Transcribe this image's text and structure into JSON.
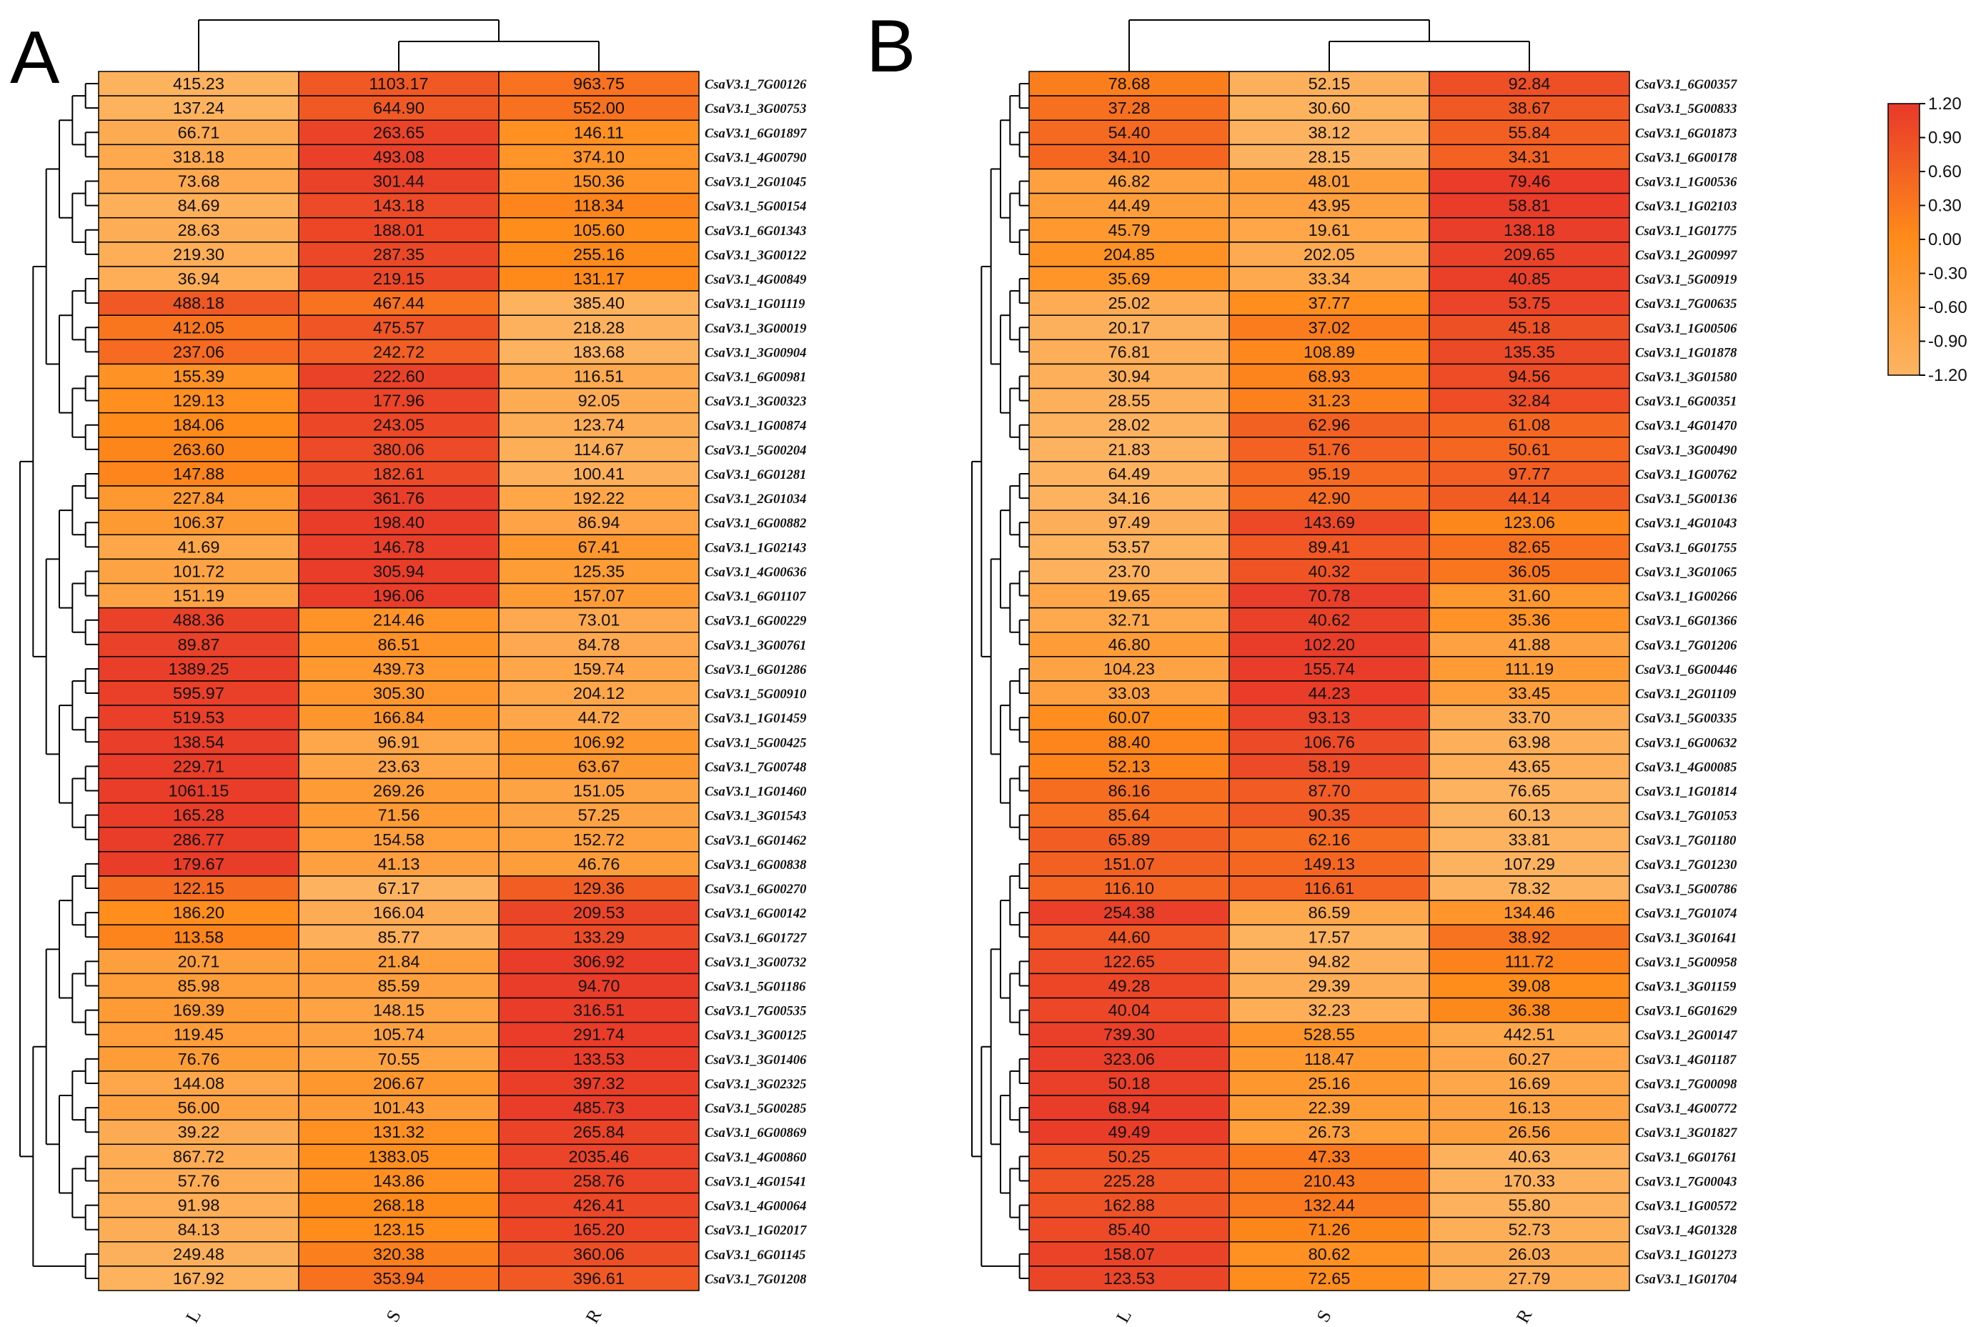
{
  "chart_data": [
    {
      "type": "heatmap",
      "panel_label": "A",
      "columns": [
        "L",
        "S",
        "R"
      ],
      "rows": [
        {
          "gene": "CsaV3.1_7G00126",
          "values": [
            415.23,
            1103.17,
            963.75
          ]
        },
        {
          "gene": "CsaV3.1_3G00753",
          "values": [
            137.24,
            644.9,
            552.0
          ]
        },
        {
          "gene": "CsaV3.1_6G01897",
          "values": [
            66.71,
            263.65,
            146.11
          ]
        },
        {
          "gene": "CsaV3.1_4G00790",
          "values": [
            318.18,
            493.08,
            374.1
          ]
        },
        {
          "gene": "CsaV3.1_2G01045",
          "values": [
            73.68,
            301.44,
            150.36
          ]
        },
        {
          "gene": "CsaV3.1_5G00154",
          "values": [
            84.69,
            143.18,
            118.34
          ]
        },
        {
          "gene": "CsaV3.1_6G01343",
          "values": [
            28.63,
            188.01,
            105.6
          ]
        },
        {
          "gene": "CsaV3.1_3G00122",
          "values": [
            219.3,
            287.35,
            255.16
          ]
        },
        {
          "gene": "CsaV3.1_4G00849",
          "values": [
            36.94,
            219.15,
            131.17
          ]
        },
        {
          "gene": "CsaV3.1_1G01119",
          "values": [
            488.18,
            467.44,
            385.4
          ]
        },
        {
          "gene": "CsaV3.1_3G00019",
          "values": [
            412.05,
            475.57,
            218.28
          ]
        },
        {
          "gene": "CsaV3.1_3G00904",
          "values": [
            237.06,
            242.72,
            183.68
          ]
        },
        {
          "gene": "CsaV3.1_6G00981",
          "values": [
            155.39,
            222.6,
            116.51
          ]
        },
        {
          "gene": "CsaV3.1_3G00323",
          "values": [
            129.13,
            177.96,
            92.05
          ]
        },
        {
          "gene": "CsaV3.1_1G00874",
          "values": [
            184.06,
            243.05,
            123.74
          ]
        },
        {
          "gene": "CsaV3.1_5G00204",
          "values": [
            263.6,
            380.06,
            114.67
          ]
        },
        {
          "gene": "CsaV3.1_6G01281",
          "values": [
            147.88,
            182.61,
            100.41
          ]
        },
        {
          "gene": "CsaV3.1_2G01034",
          "values": [
            227.84,
            361.76,
            192.22
          ]
        },
        {
          "gene": "CsaV3.1_6G00882",
          "values": [
            106.37,
            198.4,
            86.94
          ]
        },
        {
          "gene": "CsaV3.1_1G02143",
          "values": [
            41.69,
            146.78,
            67.41
          ]
        },
        {
          "gene": "CsaV3.1_4G00636",
          "values": [
            101.72,
            305.94,
            125.35
          ]
        },
        {
          "gene": "CsaV3.1_6G01107",
          "values": [
            151.19,
            196.06,
            157.07
          ]
        },
        {
          "gene": "CsaV3.1_6G00229",
          "values": [
            488.36,
            214.46,
            73.01
          ]
        },
        {
          "gene": "CsaV3.1_3G00761",
          "values": [
            89.87,
            86.51,
            84.78
          ]
        },
        {
          "gene": "CsaV3.1_6G01286",
          "values": [
            1389.25,
            439.73,
            159.74
          ]
        },
        {
          "gene": "CsaV3.1_5G00910",
          "values": [
            595.97,
            305.3,
            204.12
          ]
        },
        {
          "gene": "CsaV3.1_1G01459",
          "values": [
            519.53,
            166.84,
            44.72
          ]
        },
        {
          "gene": "CsaV3.1_5G00425",
          "values": [
            138.54,
            96.91,
            106.92
          ]
        },
        {
          "gene": "CsaV3.1_7G00748",
          "values": [
            229.71,
            23.63,
            63.67
          ]
        },
        {
          "gene": "CsaV3.1_1G01460",
          "values": [
            1061.15,
            269.26,
            151.05
          ]
        },
        {
          "gene": "CsaV3.1_3G01543",
          "values": [
            165.28,
            71.56,
            57.25
          ]
        },
        {
          "gene": "CsaV3.1_6G01462",
          "values": [
            286.77,
            154.58,
            152.72
          ]
        },
        {
          "gene": "CsaV3.1_6G00838",
          "values": [
            179.67,
            41.13,
            46.76
          ]
        },
        {
          "gene": "CsaV3.1_6G00270",
          "values": [
            122.15,
            67.17,
            129.36
          ]
        },
        {
          "gene": "CsaV3.1_6G00142",
          "values": [
            186.2,
            166.04,
            209.53
          ]
        },
        {
          "gene": "CsaV3.1_6G01727",
          "values": [
            113.58,
            85.77,
            133.29
          ]
        },
        {
          "gene": "CsaV3.1_3G00732",
          "values": [
            20.71,
            21.84,
            306.92
          ]
        },
        {
          "gene": "CsaV3.1_5G01186",
          "values": [
            85.98,
            85.59,
            94.7
          ]
        },
        {
          "gene": "CsaV3.1_7G00535",
          "values": [
            169.39,
            148.15,
            316.51
          ]
        },
        {
          "gene": "CsaV3.1_3G00125",
          "values": [
            119.45,
            105.74,
            291.74
          ]
        },
        {
          "gene": "CsaV3.1_3G01406",
          "values": [
            76.76,
            70.55,
            133.53
          ]
        },
        {
          "gene": "CsaV3.1_3G02325",
          "values": [
            144.08,
            206.67,
            397.32
          ]
        },
        {
          "gene": "CsaV3.1_5G00285",
          "values": [
            56.0,
            101.43,
            485.73
          ]
        },
        {
          "gene": "CsaV3.1_6G00869",
          "values": [
            39.22,
            131.32,
            265.84
          ]
        },
        {
          "gene": "CsaV3.1_4G00860",
          "values": [
            867.72,
            1383.05,
            2035.46
          ]
        },
        {
          "gene": "CsaV3.1_4G01541",
          "values": [
            57.76,
            143.86,
            258.76
          ]
        },
        {
          "gene": "CsaV3.1_4G00064",
          "values": [
            91.98,
            268.18,
            426.41
          ]
        },
        {
          "gene": "CsaV3.1_1G02017",
          "values": [
            84.13,
            123.15,
            165.2
          ]
        },
        {
          "gene": "CsaV3.1_6G01145",
          "values": [
            249.48,
            320.38,
            360.06
          ]
        },
        {
          "gene": "CsaV3.1_7G01208",
          "values": [
            167.92,
            353.94,
            396.61
          ]
        }
      ]
    },
    {
      "type": "heatmap",
      "panel_label": "B",
      "columns": [
        "L",
        "S",
        "R"
      ],
      "rows": [
        {
          "gene": "CsaV3.1_6G00357",
          "values": [
            78.68,
            52.15,
            92.84
          ]
        },
        {
          "gene": "CsaV3.1_5G00833",
          "values": [
            37.28,
            30.6,
            38.67
          ]
        },
        {
          "gene": "CsaV3.1_6G01873",
          "values": [
            54.4,
            38.12,
            55.84
          ]
        },
        {
          "gene": "CsaV3.1_6G00178",
          "values": [
            34.1,
            28.15,
            34.31
          ]
        },
        {
          "gene": "CsaV3.1_1G00536",
          "values": [
            46.82,
            48.01,
            79.46
          ]
        },
        {
          "gene": "CsaV3.1_1G02103",
          "values": [
            44.49,
            43.95,
            58.81
          ]
        },
        {
          "gene": "CsaV3.1_1G01775",
          "values": [
            45.79,
            19.61,
            138.18
          ]
        },
        {
          "gene": "CsaV3.1_2G00997",
          "values": [
            204.85,
            202.05,
            209.65
          ]
        },
        {
          "gene": "CsaV3.1_5G00919",
          "values": [
            35.69,
            33.34,
            40.85
          ]
        },
        {
          "gene": "CsaV3.1_7G00635",
          "values": [
            25.02,
            37.77,
            53.75
          ]
        },
        {
          "gene": "CsaV3.1_1G00506",
          "values": [
            20.17,
            37.02,
            45.18
          ]
        },
        {
          "gene": "CsaV3.1_1G01878",
          "values": [
            76.81,
            108.89,
            135.35
          ]
        },
        {
          "gene": "CsaV3.1_3G01580",
          "values": [
            30.94,
            68.93,
            94.56
          ]
        },
        {
          "gene": "CsaV3.1_6G00351",
          "values": [
            28.55,
            31.23,
            32.84
          ]
        },
        {
          "gene": "CsaV3.1_4G01470",
          "values": [
            28.02,
            62.96,
            61.08
          ]
        },
        {
          "gene": "CsaV3.1_3G00490",
          "values": [
            21.83,
            51.76,
            50.61
          ]
        },
        {
          "gene": "CsaV3.1_1G00762",
          "values": [
            64.49,
            95.19,
            97.77
          ]
        },
        {
          "gene": "CsaV3.1_5G00136",
          "values": [
            34.16,
            42.9,
            44.14
          ]
        },
        {
          "gene": "CsaV3.1_4G01043",
          "values": [
            97.49,
            143.69,
            123.06
          ]
        },
        {
          "gene": "CsaV3.1_6G01755",
          "values": [
            53.57,
            89.41,
            82.65
          ]
        },
        {
          "gene": "CsaV3.1_3G01065",
          "values": [
            23.7,
            40.32,
            36.05
          ]
        },
        {
          "gene": "CsaV3.1_1G00266",
          "values": [
            19.65,
            70.78,
            31.6
          ]
        },
        {
          "gene": "CsaV3.1_6G01366",
          "values": [
            32.71,
            40.62,
            35.36
          ]
        },
        {
          "gene": "CsaV3.1_7G01206",
          "values": [
            46.8,
            102.2,
            41.88
          ]
        },
        {
          "gene": "CsaV3.1_6G00446",
          "values": [
            104.23,
            155.74,
            111.19
          ]
        },
        {
          "gene": "CsaV3.1_2G01109",
          "values": [
            33.03,
            44.23,
            33.45
          ]
        },
        {
          "gene": "CsaV3.1_5G00335",
          "values": [
            60.07,
            93.13,
            33.7
          ]
        },
        {
          "gene": "CsaV3.1_6G00632",
          "values": [
            88.4,
            106.76,
            63.98
          ]
        },
        {
          "gene": "CsaV3.1_4G00085",
          "values": [
            52.13,
            58.19,
            43.65
          ]
        },
        {
          "gene": "CsaV3.1_1G01814",
          "values": [
            86.16,
            87.7,
            76.65
          ]
        },
        {
          "gene": "CsaV3.1_7G01053",
          "values": [
            85.64,
            90.35,
            60.13
          ]
        },
        {
          "gene": "CsaV3.1_7G01180",
          "values": [
            65.89,
            62.16,
            33.81
          ]
        },
        {
          "gene": "CsaV3.1_7G01230",
          "values": [
            151.07,
            149.13,
            107.29
          ]
        },
        {
          "gene": "CsaV3.1_5G00786",
          "values": [
            116.1,
            116.61,
            78.32
          ]
        },
        {
          "gene": "CsaV3.1_7G01074",
          "values": [
            254.38,
            86.59,
            134.46
          ]
        },
        {
          "gene": "CsaV3.1_3G01641",
          "values": [
            44.6,
            17.57,
            38.92
          ]
        },
        {
          "gene": "CsaV3.1_5G00958",
          "values": [
            122.65,
            94.82,
            111.72
          ]
        },
        {
          "gene": "CsaV3.1_3G01159",
          "values": [
            49.28,
            29.39,
            39.08
          ]
        },
        {
          "gene": "CsaV3.1_6G01629",
          "values": [
            40.04,
            32.23,
            36.38
          ]
        },
        {
          "gene": "CsaV3.1_2G00147",
          "values": [
            739.3,
            528.55,
            442.51
          ]
        },
        {
          "gene": "CsaV3.1_4G01187",
          "values": [
            323.06,
            118.47,
            60.27
          ]
        },
        {
          "gene": "CsaV3.1_7G00098",
          "values": [
            50.18,
            25.16,
            16.69
          ]
        },
        {
          "gene": "CsaV3.1_4G00772",
          "values": [
            68.94,
            22.39,
            16.13
          ]
        },
        {
          "gene": "CsaV3.1_3G01827",
          "values": [
            49.49,
            26.73,
            26.56
          ]
        },
        {
          "gene": "CsaV3.1_6G01761",
          "values": [
            50.25,
            47.33,
            40.63
          ]
        },
        {
          "gene": "CsaV3.1_7G00043",
          "values": [
            225.28,
            210.43,
            170.33
          ]
        },
        {
          "gene": "CsaV3.1_1G00572",
          "values": [
            162.88,
            132.44,
            55.8
          ]
        },
        {
          "gene": "CsaV3.1_4G01328",
          "values": [
            85.4,
            71.26,
            52.73
          ]
        },
        {
          "gene": "CsaV3.1_1G01273",
          "values": [
            158.07,
            80.62,
            26.03
          ]
        },
        {
          "gene": "CsaV3.1_1G01704",
          "values": [
            123.53,
            72.65,
            27.79
          ]
        }
      ]
    }
  ],
  "legend": {
    "ticks": [
      "1.20",
      "0.90",
      "0.60",
      "0.30",
      "0.00",
      "-0.30",
      "-0.60",
      "-0.90",
      "-1.20"
    ],
    "scale_min": -1.2,
    "scale_max": 1.2,
    "colors": {
      "low": "#FDB462",
      "mid": "#FF8C1A",
      "high": "#E8392A"
    }
  },
  "colors": {
    "grid_line": "#000000",
    "dendrogram": "#000000",
    "text": "#111111"
  }
}
